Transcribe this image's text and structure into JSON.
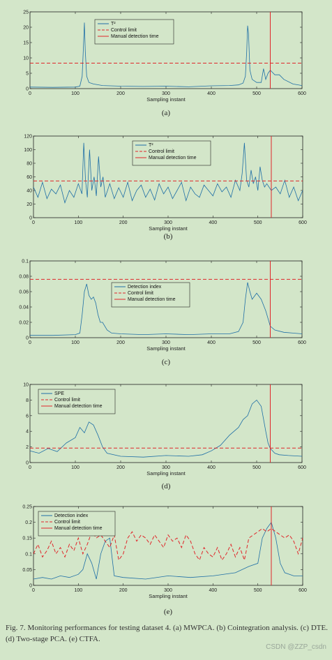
{
  "caption": "Fig. 7.    Monitoring performances for testing dataset 4. (a) MWPCA. (b) Cointegration analysis. (c) DTE. (d) Two-stage PCA. (e) CTFA.",
  "watermark": "CSDN @ZZP_csdn",
  "colors": {
    "series": "#1f6fa6",
    "limit": "#e0262a",
    "detection": "#e0262a",
    "axes": "#222222",
    "background": "#d3e6c9"
  },
  "chart_data": [
    {
      "type": "line",
      "panel_label": "(a)",
      "xlabel": "Sampling instant",
      "ylabel": "",
      "xlim": [
        0,
        600
      ],
      "ylim": [
        0,
        25
      ],
      "xticks": [
        0,
        100,
        200,
        300,
        400,
        500,
        600
      ],
      "xtick_labels": [
        "0",
        "100",
        "200",
        "300",
        "400",
        "500",
        "600"
      ],
      "yticks": [
        0,
        5,
        10,
        15,
        20,
        25
      ],
      "ytick_labels": [
        "0",
        "5",
        "10",
        "15",
        "20",
        "25"
      ],
      "legend": {
        "placement": "top-center",
        "entries": [
          "T²",
          "Control limit",
          "Manual detection time"
        ]
      },
      "series": [
        {
          "name": "T²",
          "x": [
            0,
            50,
            100,
            110,
            115,
            118,
            120,
            122,
            125,
            130,
            140,
            160,
            200,
            250,
            300,
            350,
            400,
            440,
            460,
            470,
            475,
            478,
            480,
            482,
            485,
            490,
            500,
            510,
            515,
            520,
            525,
            530,
            540,
            550,
            560,
            580,
            600
          ],
          "y": [
            0.5,
            0.4,
            0.5,
            0.8,
            4,
            14,
            21.5,
            12,
            4,
            2,
            1.5,
            1,
            0.8,
            0.7,
            0.8,
            0.6,
            0.9,
            1,
            1.2,
            1.8,
            4,
            12,
            20.5,
            18,
            6,
            3,
            2,
            2,
            6.5,
            3,
            5,
            6,
            4.5,
            4.5,
            3,
            1.5,
            1
          ]
        }
      ],
      "control_limit": 8.3,
      "detection_time": 530
    },
    {
      "type": "line",
      "panel_label": "(b)",
      "xlabel": "Sampling instant",
      "ylabel": "",
      "xlim": [
        0,
        600
      ],
      "ylim": [
        0,
        120
      ],
      "xticks": [
        0,
        100,
        200,
        300,
        400,
        500,
        600
      ],
      "xtick_labels": [
        "0",
        "100",
        "200",
        "300",
        "400",
        "500",
        "600"
      ],
      "yticks": [
        0,
        20,
        40,
        60,
        80,
        100,
        120
      ],
      "ytick_labels": [
        "0",
        "20",
        "40",
        "60",
        "80",
        "100",
        "120"
      ],
      "legend": {
        "placement": "top-center",
        "entries": [
          "T²",
          "Control limit",
          "Manual detection time"
        ]
      },
      "series": [
        {
          "name": "T²",
          "x": [
            0,
            10,
            20,
            30,
            40,
            50,
            60,
            70,
            80,
            90,
            100,
            108,
            112,
            116,
            120,
            125,
            130,
            135,
            140,
            145,
            150,
            155,
            160,
            170,
            180,
            190,
            200,
            210,
            220,
            230,
            240,
            250,
            260,
            270,
            280,
            290,
            300,
            310,
            320,
            330,
            340,
            350,
            360,
            370,
            380,
            390,
            400,
            410,
            420,
            430,
            440,
            450,
            460,
            465,
            470,
            475,
            480,
            485,
            490,
            495,
            500,
            505,
            510,
            515,
            520,
            530,
            540,
            550,
            560,
            570,
            580,
            590,
            600
          ],
          "y": [
            45,
            30,
            52,
            28,
            42,
            35,
            48,
            22,
            40,
            30,
            50,
            35,
            110,
            55,
            30,
            100,
            40,
            60,
            32,
            90,
            45,
            60,
            30,
            50,
            28,
            44,
            30,
            52,
            25,
            40,
            48,
            30,
            42,
            26,
            50,
            35,
            45,
            28,
            40,
            52,
            25,
            45,
            35,
            30,
            48,
            40,
            32,
            50,
            38,
            45,
            30,
            55,
            40,
            65,
            110,
            55,
            45,
            70,
            50,
            60,
            40,
            75,
            55,
            45,
            50,
            40,
            45,
            35,
            55,
            30,
            45,
            25,
            40
          ]
        }
      ],
      "control_limit": 54,
      "detection_time": 530
    },
    {
      "type": "line",
      "panel_label": "(c)",
      "xlabel": "Sampling instant",
      "ylabel": "",
      "xlim": [
        0,
        600
      ],
      "ylim": [
        0,
        0.1
      ],
      "xticks": [
        0,
        100,
        200,
        300,
        400,
        500,
        600
      ],
      "xtick_labels": [
        "0",
        "100",
        "200",
        "300",
        "400",
        "500",
        "600"
      ],
      "yticks": [
        0,
        0.02,
        0.04,
        0.06,
        0.08,
        0.1
      ],
      "ytick_labels": [
        "0",
        "0.02",
        "0.04",
        "0.06",
        "0.08",
        "0.1"
      ],
      "legend": {
        "placement": "top-center",
        "entries": [
          "Detection index",
          "Control limit",
          "Manual detection time"
        ]
      },
      "series": [
        {
          "name": "Detection index",
          "x": [
            0,
            50,
            100,
            110,
            115,
            120,
            125,
            130,
            135,
            140,
            145,
            150,
            155,
            160,
            170,
            180,
            200,
            250,
            300,
            350,
            400,
            440,
            460,
            470,
            475,
            480,
            485,
            490,
            500,
            510,
            520,
            530,
            540,
            560,
            580,
            600
          ],
          "y": [
            0.003,
            0.003,
            0.004,
            0.006,
            0.03,
            0.06,
            0.07,
            0.055,
            0.05,
            0.053,
            0.045,
            0.03,
            0.02,
            0.02,
            0.01,
            0.006,
            0.005,
            0.004,
            0.005,
            0.004,
            0.005,
            0.005,
            0.008,
            0.02,
            0.05,
            0.072,
            0.06,
            0.05,
            0.058,
            0.05,
            0.035,
            0.015,
            0.01,
            0.007,
            0.006,
            0.005
          ]
        }
      ],
      "control_limit": 0.076,
      "detection_time": 530
    },
    {
      "type": "line",
      "panel_label": "(d)",
      "xlabel": "Sampling instant",
      "ylabel": "",
      "xlim": [
        0,
        600
      ],
      "ylim": [
        0,
        10
      ],
      "xticks": [
        0,
        100,
        200,
        300,
        400,
        500,
        600
      ],
      "xtick_labels": [
        "0",
        "100",
        "200",
        "300",
        "400",
        "500",
        "600"
      ],
      "yticks": [
        0,
        2,
        4,
        6,
        8,
        10
      ],
      "ytick_labels": [
        "0",
        "2",
        "4",
        "6",
        "8",
        "10"
      ],
      "legend": {
        "placement": "top-left",
        "entries": [
          "SPE",
          "Control limit",
          "Manual detection time"
        ]
      },
      "series": [
        {
          "name": "SPE",
          "x": [
            0,
            20,
            40,
            60,
            80,
            100,
            110,
            120,
            130,
            140,
            150,
            160,
            170,
            200,
            250,
            300,
            350,
            380,
            400,
            420,
            440,
            460,
            470,
            480,
            490,
            500,
            510,
            520,
            525,
            530,
            540,
            550,
            570,
            600
          ],
          "y": [
            1.5,
            1.2,
            1.8,
            1.4,
            2.5,
            3.2,
            4.5,
            3.8,
            5.2,
            4.8,
            3.5,
            2,
            1.2,
            0.8,
            0.7,
            0.9,
            0.8,
            1,
            1.5,
            2.2,
            3.5,
            4.5,
            5.5,
            6,
            7.5,
            8,
            7.2,
            4,
            2.5,
            1.8,
            1.2,
            1,
            0.9,
            0.8
          ]
        }
      ],
      "control_limit": 1.85,
      "detection_time": 530
    },
    {
      "type": "line",
      "panel_label": "(e)",
      "xlabel": "Sampling instant",
      "ylabel": "",
      "xlim": [
        0,
        600
      ],
      "ylim": [
        0,
        0.25
      ],
      "xticks": [
        0,
        100,
        200,
        300,
        400,
        500,
        600
      ],
      "xtick_labels": [
        "0",
        "100",
        "200",
        "300",
        "400",
        "500",
        "600"
      ],
      "yticks": [
        0,
        0.05,
        0.1,
        0.15,
        0.2,
        0.25
      ],
      "ytick_labels": [
        "0",
        "0.05",
        "0.1",
        "0.15",
        "0.2",
        "0.25"
      ],
      "legend": {
        "placement": "top-left",
        "entries": [
          "Detection index",
          "Control limit",
          "Manual detection time"
        ]
      },
      "series": [
        {
          "name": "Detection index",
          "x": [
            0,
            20,
            40,
            60,
            80,
            100,
            110,
            120,
            130,
            140,
            150,
            160,
            170,
            180,
            200,
            250,
            300,
            350,
            400,
            450,
            480,
            500,
            510,
            520,
            530,
            540,
            550,
            560,
            580,
            600
          ],
          "y": [
            0.02,
            0.025,
            0.02,
            0.03,
            0.025,
            0.035,
            0.05,
            0.1,
            0.07,
            0.02,
            0.1,
            0.14,
            0.15,
            0.03,
            0.025,
            0.02,
            0.03,
            0.025,
            0.03,
            0.04,
            0.06,
            0.07,
            0.15,
            0.18,
            0.2,
            0.15,
            0.07,
            0.04,
            0.03,
            0.03
          ]
        },
        {
          "name": "Control limit",
          "x": [
            0,
            10,
            20,
            30,
            40,
            50,
            60,
            70,
            80,
            90,
            100,
            110,
            120,
            130,
            140,
            150,
            160,
            170,
            180,
            190,
            200,
            210,
            220,
            230,
            240,
            250,
            260,
            270,
            280,
            290,
            300,
            310,
            320,
            330,
            340,
            350,
            360,
            370,
            380,
            390,
            400,
            410,
            420,
            430,
            440,
            450,
            460,
            470,
            480,
            490,
            500,
            510,
            520,
            530,
            540,
            550,
            560,
            570,
            580,
            590,
            600
          ],
          "y": [
            0.1,
            0.13,
            0.09,
            0.11,
            0.14,
            0.1,
            0.12,
            0.09,
            0.13,
            0.11,
            0.15,
            0.1,
            0.13,
            0.17,
            0.15,
            0.16,
            0.14,
            0.12,
            0.16,
            0.08,
            0.1,
            0.15,
            0.17,
            0.14,
            0.16,
            0.15,
            0.13,
            0.16,
            0.14,
            0.12,
            0.16,
            0.14,
            0.15,
            0.12,
            0.16,
            0.14,
            0.1,
            0.08,
            0.12,
            0.1,
            0.09,
            0.12,
            0.08,
            0.1,
            0.13,
            0.09,
            0.12,
            0.08,
            0.15,
            0.16,
            0.17,
            0.18,
            0.17,
            0.18,
            0.17,
            0.16,
            0.15,
            0.16,
            0.14,
            0.1,
            0.15
          ]
        }
      ],
      "control_limit": null,
      "detection_time": 530
    }
  ]
}
